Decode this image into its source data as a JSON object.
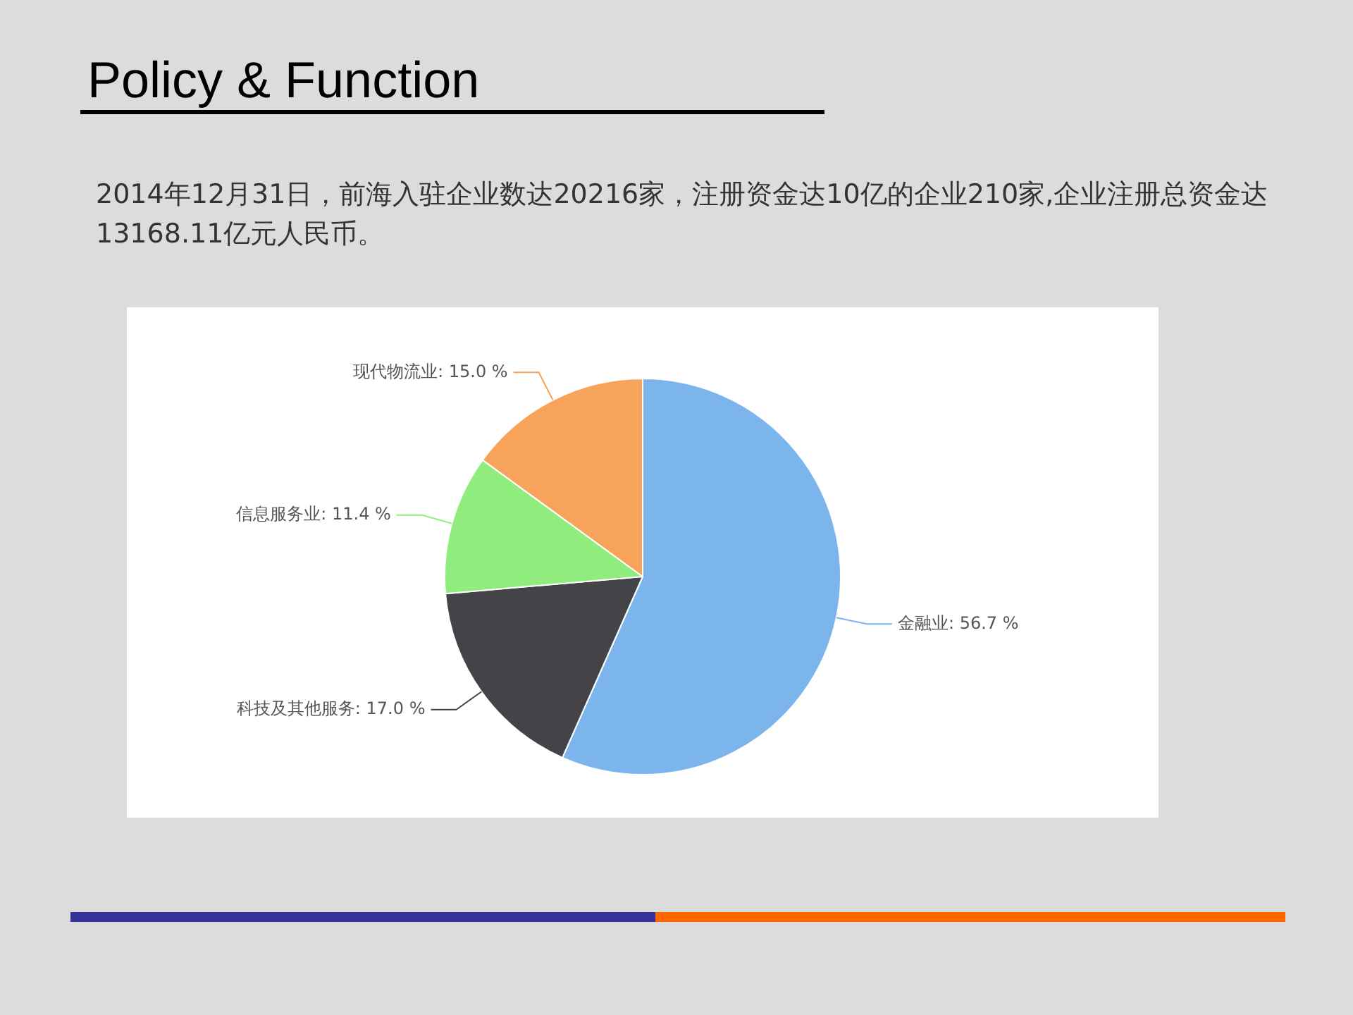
{
  "chart_data": {
    "type": "pie",
    "title": "Policy & Function",
    "subtitle": "2014年12月31日，前海入驻企业数达20216家，注册资金达10亿的企业210家,企业注册总资金达13168.11亿元人民币。",
    "categories": [
      "金融业",
      "科技及其他服务",
      "信息服务业",
      "现代物流业"
    ],
    "values": [
      56.7,
      17.0,
      11.4,
      15.0
    ],
    "value_labels": [
      "56.7 %",
      "17.0 %",
      "11.4 %",
      "15.0 %"
    ],
    "colors": [
      "#7cb5ec",
      "#434348",
      "#90ed7d",
      "#f7a35c"
    ],
    "legend": false
  }
}
